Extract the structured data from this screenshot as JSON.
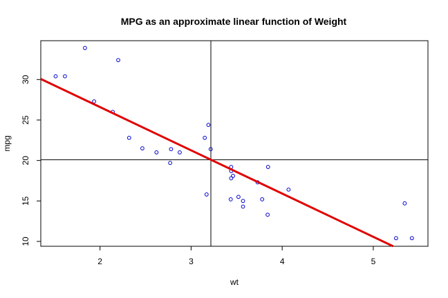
{
  "chart_data": {
    "type": "scatter",
    "title": "MPG as an approximate linear function of Weight",
    "xlabel": "wt",
    "ylabel": "mpg",
    "xlim": [
      1.35,
      5.6
    ],
    "ylim": [
      9.4,
      34.8
    ],
    "xticks": [
      2,
      3,
      4,
      5
    ],
    "yticks": [
      10,
      15,
      20,
      25,
      30
    ],
    "grid": false,
    "legend": "none",
    "colors": {
      "points": "#0000cc",
      "regression_line": "#e00000",
      "reference_lines": "#000000"
    },
    "points": [
      {
        "x": 2.62,
        "y": 21.0
      },
      {
        "x": 2.875,
        "y": 21.0
      },
      {
        "x": 2.32,
        "y": 22.8
      },
      {
        "x": 3.215,
        "y": 21.4
      },
      {
        "x": 3.44,
        "y": 18.7
      },
      {
        "x": 3.46,
        "y": 18.1
      },
      {
        "x": 3.57,
        "y": 14.3
      },
      {
        "x": 3.19,
        "y": 24.4
      },
      {
        "x": 3.15,
        "y": 22.8
      },
      {
        "x": 3.44,
        "y": 19.2
      },
      {
        "x": 3.44,
        "y": 17.8
      },
      {
        "x": 4.07,
        "y": 16.4
      },
      {
        "x": 3.73,
        "y": 17.3
      },
      {
        "x": 3.78,
        "y": 15.2
      },
      {
        "x": 5.25,
        "y": 10.4
      },
      {
        "x": 5.424,
        "y": 10.4
      },
      {
        "x": 5.345,
        "y": 14.7
      },
      {
        "x": 2.2,
        "y": 32.4
      },
      {
        "x": 1.615,
        "y": 30.4
      },
      {
        "x": 1.835,
        "y": 33.9
      },
      {
        "x": 2.465,
        "y": 21.5
      },
      {
        "x": 3.52,
        "y": 15.5
      },
      {
        "x": 3.435,
        "y": 15.2
      },
      {
        "x": 3.84,
        "y": 13.3
      },
      {
        "x": 3.845,
        "y": 19.2
      },
      {
        "x": 1.935,
        "y": 27.3
      },
      {
        "x": 2.14,
        "y": 26.0
      },
      {
        "x": 1.513,
        "y": 30.4
      },
      {
        "x": 3.17,
        "y": 15.8
      },
      {
        "x": 2.77,
        "y": 19.7
      },
      {
        "x": 3.57,
        "y": 15.0
      },
      {
        "x": 2.78,
        "y": 21.4
      }
    ],
    "regression_line": {
      "intercept": 37.285,
      "slope": -5.344
    },
    "reference_lines": {
      "x_mean": 3.217,
      "y_mean": 20.09
    }
  }
}
